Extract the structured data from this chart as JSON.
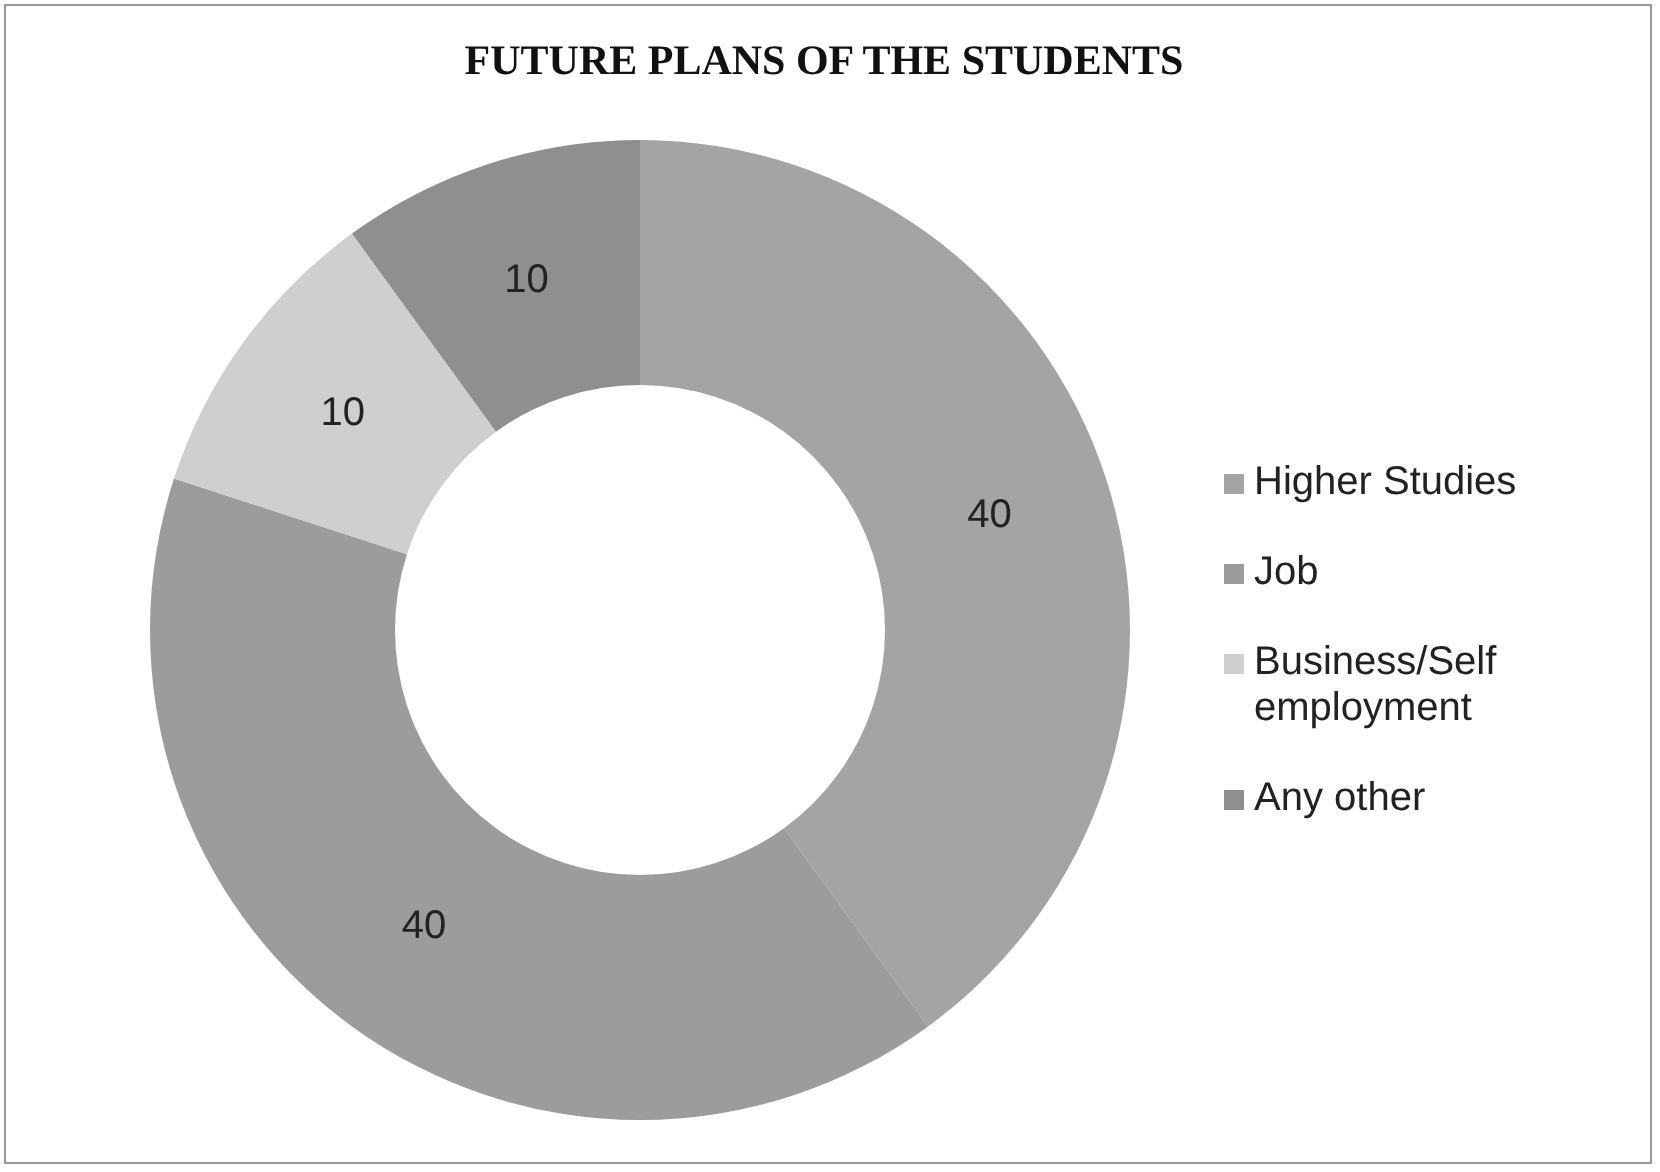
{
  "chart_data": {
    "type": "donut",
    "title": "FUTURE PLANS OF THE STUDENTS",
    "categories": [
      "Higher Studies",
      "Job",
      "Business/Self employment",
      "Any other"
    ],
    "values": [
      40,
      40,
      10,
      10
    ],
    "colors": [
      "#a4a4a4",
      "#9c9c9c",
      "#cfcfcf",
      "#8f8f8f"
    ],
    "data_labels": true,
    "legend": "right"
  }
}
